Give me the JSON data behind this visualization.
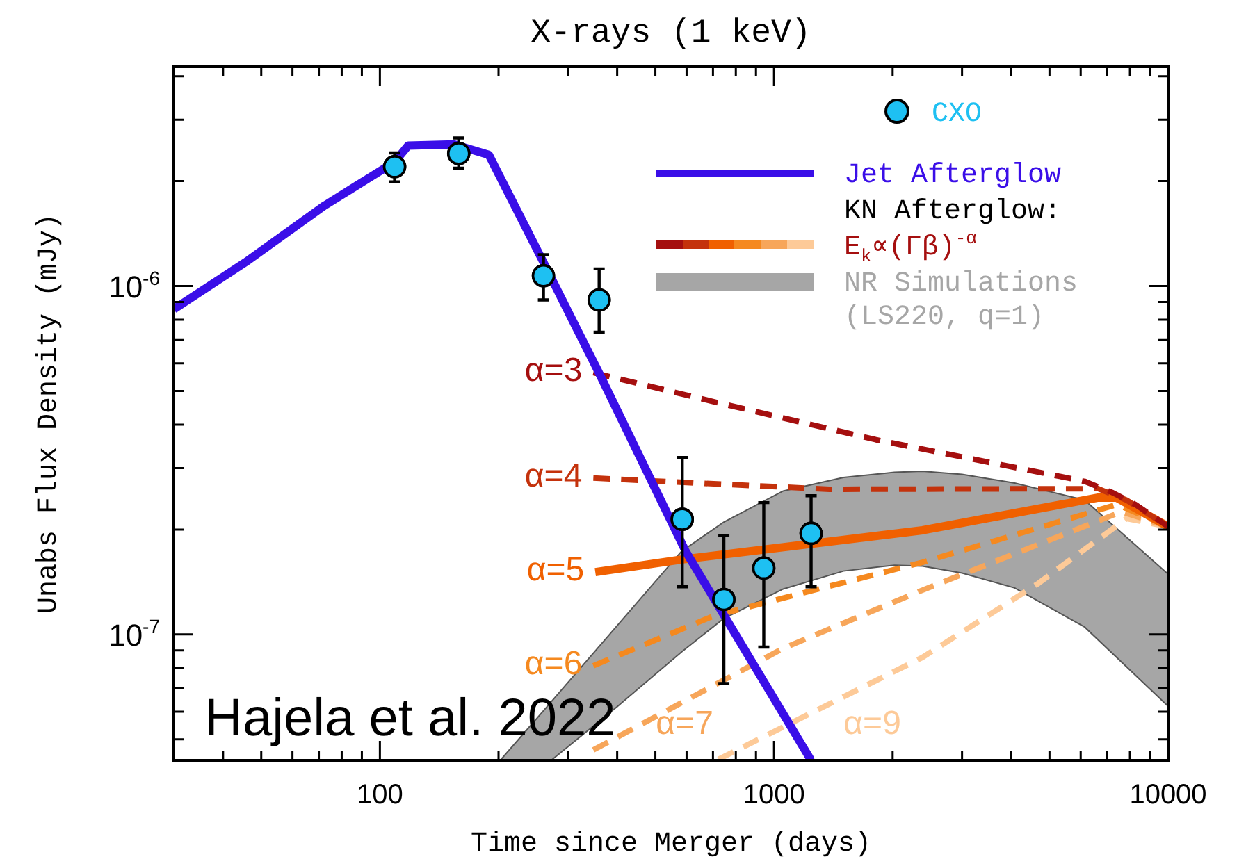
{
  "chart_data": {
    "type": "line",
    "title": "X-rays (1 keV)",
    "xlabel": "Time since Merger (days)",
    "ylabel": "Unabs Flux Density (mJy)",
    "log": "xy",
    "legend": "top right",
    "xlim": [
      30,
      10000
    ],
    "ylim": [
      4.35e-08,
      4.26e-06
    ],
    "xticks": [
      {
        "value": 40,
        "label": null
      },
      {
        "value": 50,
        "label": null
      },
      {
        "value": 60,
        "label": null
      },
      {
        "value": 70,
        "label": null
      },
      {
        "value": 80,
        "label": null
      },
      {
        "value": 90,
        "label": null
      },
      100,
      {
        "value": 200,
        "label": null
      },
      {
        "value": 300,
        "label": null
      },
      {
        "value": 400,
        "label": null
      },
      {
        "value": 500,
        "label": null
      },
      {
        "value": 600,
        "label": null
      },
      {
        "value": 700,
        "label": null
      },
      {
        "value": 800,
        "label": null
      },
      {
        "value": 900,
        "label": null
      },
      1000,
      {
        "value": 2000,
        "label": null
      },
      {
        "value": 3000,
        "label": null
      },
      {
        "value": 4000,
        "label": null
      },
      {
        "value": 5000,
        "label": null
      },
      {
        "value": 6000,
        "label": null
      },
      {
        "value": 7000,
        "label": null
      },
      {
        "value": 8000,
        "label": null
      },
      {
        "value": 9000,
        "label": null
      },
      10000
    ],
    "yticks": [
      {
        "value": 5e-08,
        "label": null
      },
      {
        "value": 6e-08,
        "label": null
      },
      {
        "value": 7e-08,
        "label": null
      },
      {
        "value": 8e-08,
        "label": null
      },
      {
        "value": 9e-08,
        "label": null
      },
      {
        "value": 1e-07,
        "label": "10$^{-7}$"
      },
      {
        "value": 2e-07,
        "label": null
      },
      {
        "value": 3e-07,
        "label": null
      },
      {
        "value": 4e-07,
        "label": null
      },
      {
        "value": 5e-07,
        "label": null
      },
      {
        "value": 6e-07,
        "label": null
      },
      {
        "value": 7e-07,
        "label": null
      },
      {
        "value": 8e-07,
        "label": null
      },
      {
        "value": 9e-07,
        "label": null
      },
      {
        "value": 1e-06,
        "label": "10$^{-6}$"
      },
      {
        "value": 2e-06,
        "label": null
      },
      {
        "value": 3e-06,
        "label": null
      },
      {
        "value": 4e-06,
        "label": null
      }
    ],
    "annotations": [
      "KN Afterglow:",
      "E$_{k}$∝(Γβ)$^{-α}$",
      "Hajela et al. 2022"
    ],
    "series": [
      {
        "type": "area",
        "name": "NR Simulations (LS220, q=1)",
        "color": "#a6a6a6",
        "x": [
          202,
          272,
          400,
          582,
          745,
          1055,
          1500,
          2020,
          2380,
          3000,
          4080,
          6140,
          10000
        ],
        "values": [
          null,
          null,
          null,
          null,
          null,
          null,
          null,
          null,
          null,
          null,
          null,
          null,
          null
        ],
        "lower": [
          4.35e-08,
          4.35e-08,
          6.2e-08,
          8.9e-08,
          1.11e-07,
          1.35e-07,
          1.52e-07,
          1.58e-07,
          1.57e-07,
          1.5e-07,
          1.36e-07,
          1.05e-07,
          6.22e-08
        ],
        "upper": [
          4.35e-08,
          6.4e-08,
          1.06e-07,
          1.73e-07,
          2.1e-07,
          2.58e-07,
          2.82e-07,
          2.92e-07,
          2.94e-07,
          2.88e-07,
          2.72e-07,
          2.43e-07,
          1.49e-07
        ]
      },
      {
        "name": "Jet Afterglow",
        "color": "#3a0ee8",
        "line_style": "solid",
        "x": [
          30,
          45.6,
          72.3,
          109,
          118,
          154,
          189,
          258,
          320,
          357,
          597,
          1242
        ],
        "values": [
          8.58e-07,
          1.17e-06,
          1.7e-06,
          2.27e-06,
          2.53e-06,
          2.55e-06,
          2.38e-06,
          1.19e-06,
          7.32e-07,
          5.73e-07,
          1.73e-07,
          4.35e-08
        ]
      },
      {
        "name": "α=3",
        "color": "#a50f0f",
        "line_style": "dashed",
        "x": [
          348,
          723,
          1815,
          6140,
          7240,
          8260,
          10000
        ],
        "values": [
          5.64e-07,
          4.62e-07,
          3.62e-07,
          2.75e-07,
          2.55e-07,
          2.36e-07,
          2.04e-07
        ]
      },
      {
        "name": "α=4",
        "color": "#c4320c",
        "line_style": "dashed",
        "x": [
          348,
          1383,
          6650,
          7840,
          10000
        ],
        "values": [
          2.81e-07,
          2.61e-07,
          2.62e-07,
          2.43e-07,
          2.04e-07
        ]
      },
      {
        "name": "α=5",
        "color": "#f06000",
        "line_style": "solid",
        "x": [
          352,
          582,
          2380,
          6650,
          7400,
          10000
        ],
        "values": [
          1.51e-07,
          1.64e-07,
          1.99e-07,
          2.47e-07,
          2.47e-07,
          2.04e-07
        ]
      },
      {
        "name": "α=6",
        "color": "#f5891f",
        "line_style": "dashed",
        "x": [
          348,
          703,
          2380,
          7420,
          10000
        ],
        "values": [
          8.13e-08,
          1.13e-07,
          1.61e-07,
          2.36e-07,
          2.04e-07
        ]
      },
      {
        "name": "α=7",
        "color": "#f7a65a",
        "line_style": "dashed",
        "x": [
          348,
          1055,
          2380,
          7620,
          10000
        ],
        "values": [
          4.66e-08,
          9.12e-08,
          1.34e-07,
          2.25e-07,
          2.04e-07
        ]
      },
      {
        "name": "α=9",
        "color": "#fdca98",
        "line_style": "dashed",
        "x": [
          723,
          2380,
          4680,
          7840,
          10000
        ],
        "values": [
          4.38e-08,
          8.59e-08,
          1.4e-07,
          2.15e-07,
          2.04e-07
        ]
      },
      {
        "type": "scatter",
        "name": "CXO",
        "color": "#1ec0f2",
        "marker": "circle",
        "x": [
          109,
          158.5,
          260,
          360,
          585,
          746,
          942,
          1242
        ],
        "values": [
          2.2e-06,
          2.4e-06,
          1.07e-06,
          9.12e-07,
          2.14e-07,
          1.26e-07,
          1.55e-07,
          1.95e-07
        ],
        "errors": [
          [
            1.99e-06,
            2.41e-06
          ],
          [
            2.18e-06,
            2.66e-06
          ],
          [
            9.12e-07,
            1.23e-06
          ],
          [
            7.37e-07,
            1.12e-06
          ],
          [
            1.37e-07,
            3.22e-07
          ],
          [
            7.23e-08,
            1.92e-07
          ],
          [
            9.2e-08,
            2.39e-07
          ],
          [
            1.37e-07,
            2.5e-07
          ]
        ]
      }
    ]
  }
}
